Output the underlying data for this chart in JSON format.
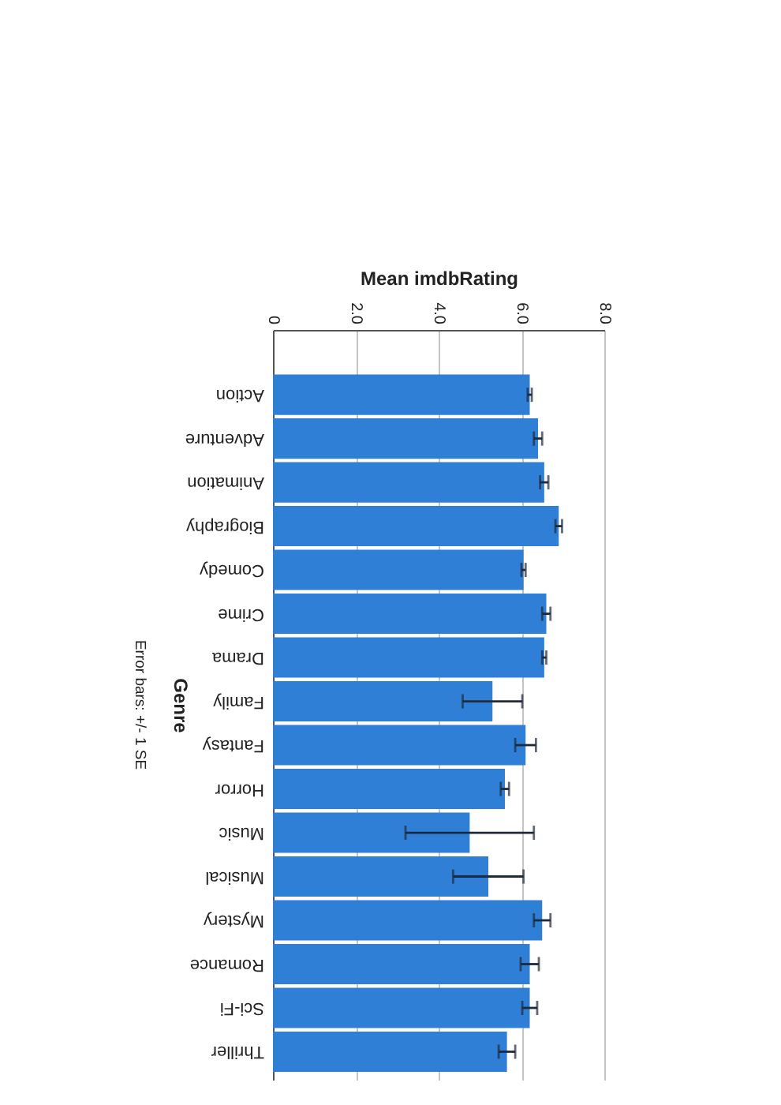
{
  "chart_data": {
    "type": "bar",
    "orientation": "horizontal",
    "xlabel": "Mean imdbRating",
    "ylabel": "Genre",
    "annotations": [
      "Error bars: +/- 1 SE"
    ],
    "categories": [
      "Action",
      "Adventure",
      "Animation",
      "Biography",
      "Comedy",
      "Crime",
      "Drama",
      "Family",
      "Fantasy",
      "Horror",
      "Music",
      "Musical",
      "Mystery",
      "Romance",
      "Sci-Fi",
      "Thriller"
    ],
    "values": [
      6.2,
      6.4,
      6.55,
      6.9,
      6.05,
      6.6,
      6.55,
      5.3,
      6.1,
      5.6,
      4.75,
      5.2,
      6.5,
      6.2,
      6.2,
      5.65
    ],
    "errors": [
      0.05,
      0.1,
      0.1,
      0.08,
      0.05,
      0.1,
      0.05,
      0.72,
      0.25,
      0.1,
      1.55,
      0.85,
      0.2,
      0.22,
      0.18,
      0.2
    ],
    "color": "#2f7fd6",
    "xlim": [
      0,
      8
    ],
    "xticks": [
      0,
      {
        "value": 2,
        "label": "2.0"
      },
      {
        "value": 4,
        "label": "4.0"
      },
      {
        "value": 6,
        "label": "6.0"
      },
      {
        "value": 8,
        "label": "8.0"
      }
    ],
    "grid": "x"
  }
}
